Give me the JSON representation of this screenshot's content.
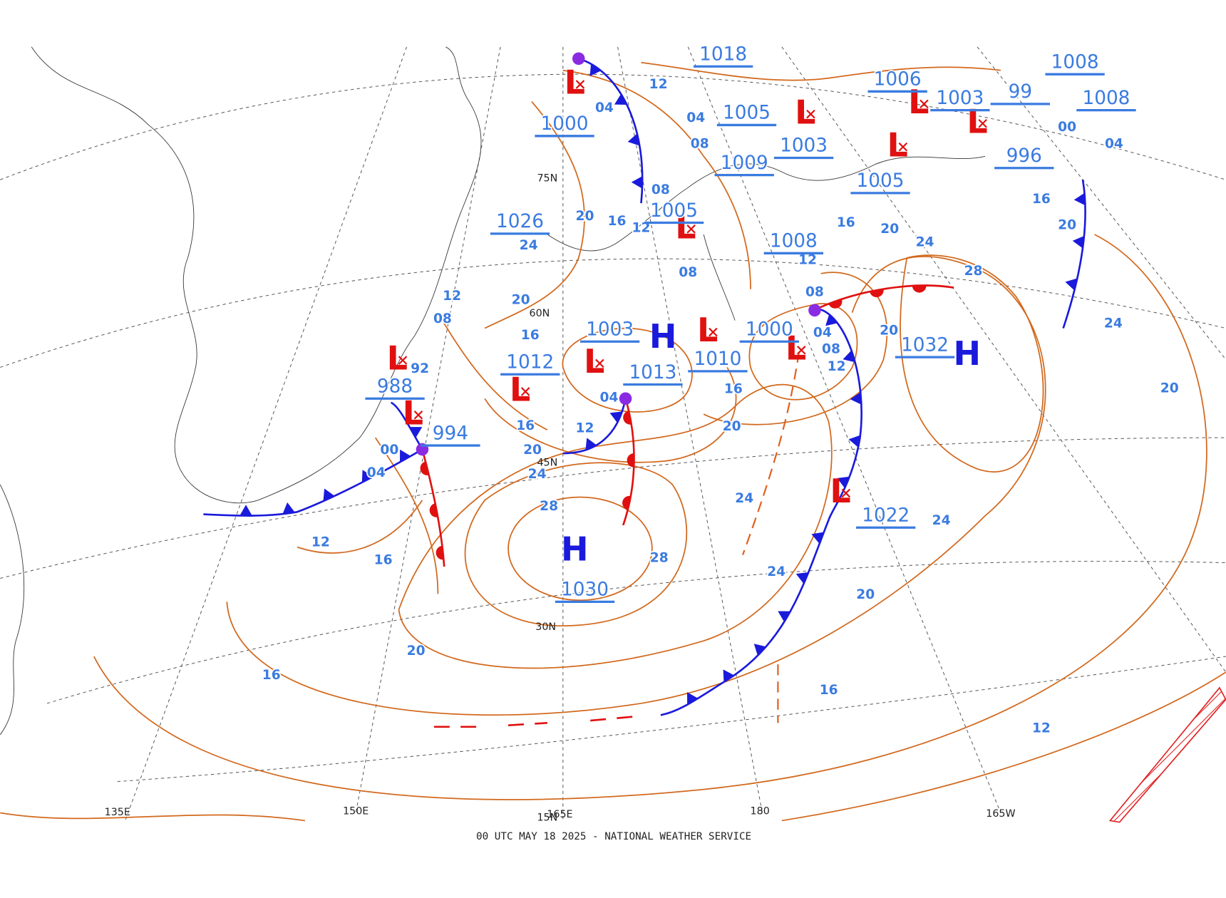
{
  "map": {
    "caption": "00 UTC MAY 18 2025 - NATIONAL WEATHER SERVICE",
    "grid_labels": [
      "135E",
      "150E",
      "165E",
      "180",
      "165W",
      "75N",
      "60N",
      "45N",
      "30N",
      "15N"
    ],
    "centers": [
      {
        "symbol": "L"
      },
      {
        "symbol": "H"
      },
      {
        "symbol": "H"
      },
      {
        "symbol": "H"
      },
      {
        "symbol": "L"
      },
      {
        "symbol": "L"
      },
      {
        "symbol": "L"
      },
      {
        "symbol": "L"
      },
      {
        "symbol": "L"
      },
      {
        "symbol": "L"
      },
      {
        "symbol": "L"
      },
      {
        "symbol": "L"
      },
      {
        "symbol": "L"
      },
      {
        "symbol": "L"
      },
      {
        "symbol": "L"
      },
      {
        "symbol": "L"
      }
    ],
    "pressure_labels": [
      "1000",
      "1030",
      "1032",
      "1013",
      "988",
      "994",
      "1012",
      "1003",
      "1010",
      "1000",
      "1022",
      "1026",
      "1018",
      "1005",
      "1003",
      "1009",
      "1005",
      "1008",
      "1006",
      "1003",
      "1008",
      "1008",
      "996",
      "1005",
      "99"
    ],
    "isobar_labels": [
      "04",
      "12",
      "04",
      "08",
      "08",
      "20",
      "16",
      "12",
      "08",
      "24",
      "20",
      "12",
      "08",
      "16",
      "92",
      "04",
      "12",
      "16",
      "20",
      "24",
      "28",
      "28",
      "24",
      "20",
      "16",
      "12",
      "08",
      "04",
      "08",
      "12",
      "16",
      "20",
      "24",
      "28",
      "20",
      "20",
      "24",
      "20",
      "24",
      "24",
      "20",
      "16",
      "12",
      "16",
      "12",
      "04",
      "00",
      "20",
      "16",
      "00",
      "04",
      "16"
    ]
  }
}
